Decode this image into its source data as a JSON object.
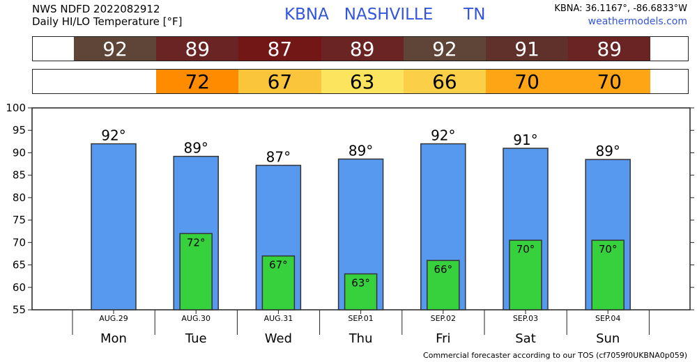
{
  "header": {
    "line1": "NWS NDFD 2022082912",
    "line2": "Daily HI/LO Temperature [°F]",
    "station": "KBNA",
    "city": "NASHVILLE",
    "state": "TN",
    "coords": "KBNA: 36.1167°, -86.6833°W",
    "site": "weathermodels.com"
  },
  "hi_strip": [
    {
      "value": "92",
      "color": "#5f4538"
    },
    {
      "value": "89",
      "color": "#6a2424"
    },
    {
      "value": "87",
      "color": "#731616"
    },
    {
      "value": "89",
      "color": "#6a2424"
    },
    {
      "value": "92",
      "color": "#5f4538"
    },
    {
      "value": "91",
      "color": "#60302a"
    },
    {
      "value": "89",
      "color": "#6a2424"
    }
  ],
  "lo_strip": [
    {
      "value": "72",
      "color": "#ff8c00"
    },
    {
      "value": "67",
      "color": "#fac53a"
    },
    {
      "value": "63",
      "color": "#fde45f"
    },
    {
      "value": "66",
      "color": "#fbd048"
    },
    {
      "value": "70",
      "color": "#fda515"
    },
    {
      "value": "70",
      "color": "#fda515"
    }
  ],
  "chart_data": {
    "type": "bar",
    "categories": [
      "AUG.29",
      "AUG.30",
      "AUG.31",
      "SEP.01",
      "SEP.02",
      "SEP.03",
      "SEP.04"
    ],
    "days": [
      "Mon",
      "Tue",
      "Wed",
      "Thu",
      "Fri",
      "Sat",
      "Sun"
    ],
    "series": [
      {
        "values": [
          92,
          89,
          87,
          89,
          92,
          91,
          89
        ],
        "color": "#5899f0"
      },
      {
        "values": [
          null,
          72,
          67,
          63,
          66,
          70,
          70
        ],
        "color": "#36d13c"
      }
    ],
    "hi_labels": [
      "92°",
      "89°",
      "87°",
      "89°",
      "92°",
      "91°",
      "89°"
    ],
    "lo_labels": [
      "",
      "72°",
      "67°",
      "63°",
      "66°",
      "70°",
      "70°"
    ],
    "hi_plot_values": [
      92,
      89.2,
      87.2,
      88.6,
      92,
      91,
      88.5
    ],
    "lo_plot_values": [
      null,
      72,
      67,
      63,
      66,
      70.5,
      70.5
    ],
    "ylim": [
      55,
      100
    ],
    "yticks": [
      55,
      60,
      65,
      70,
      75,
      80,
      85,
      90,
      95,
      100
    ],
    "grid": false
  },
  "footer": "Commercial forecaster according to our TOS (cf7059f0UKBNA0p059)"
}
